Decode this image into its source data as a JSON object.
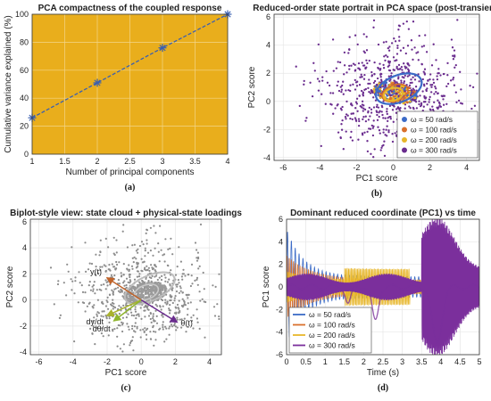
{
  "chart_data": [
    {
      "panel": "(a)",
      "type": "line",
      "title": "PCA compactness of the coupled response",
      "xlabel": "Number of principal components",
      "ylabel": "Cumulative variance explained (%)",
      "xlim": [
        1,
        4
      ],
      "ylim": [
        0,
        100
      ],
      "xticks": [
        "1",
        "1.5",
        "2",
        "2.5",
        "3",
        "3.5",
        "4"
      ],
      "yticks": [
        "0",
        "20",
        "40",
        "60",
        "80",
        "100"
      ],
      "background": "#E9AE1C",
      "grid": true,
      "x": [
        1,
        2,
        3,
        4
      ],
      "y": [
        26,
        51,
        76,
        100
      ],
      "line_color": "#3A5FB0",
      "marker": "asterisk"
    },
    {
      "panel": "(b)",
      "type": "scatter",
      "title": "Reduced-order state portrait in PCA space (post-transient)",
      "xlabel": "PC1 score",
      "ylabel": "PC2 score",
      "xlim": [
        -6.5,
        4.7
      ],
      "ylim": [
        -4.2,
        6.2
      ],
      "xticks": [
        "-6",
        "-4",
        "-2",
        "0",
        "2",
        "4"
      ],
      "yticks": [
        "-4",
        "-2",
        "0",
        "2",
        "4",
        "6"
      ],
      "grid": true,
      "legend_position": "bottom-right",
      "series": [
        {
          "name": "ω = 50 rad/s",
          "color": "#3B6BC7"
        },
        {
          "name": "ω = 100 rad/s",
          "color": "#D9702C"
        },
        {
          "name": "ω = 200 rad/s",
          "color": "#E7B62A"
        },
        {
          "name": "ω = 300 rad/s",
          "color": "#6A2C8E"
        }
      ]
    },
    {
      "panel": "(c)",
      "type": "scatter",
      "title": "Biplot-style view: state cloud + physical-state loadings",
      "xlabel": "PC1 score",
      "ylabel": "PC2 score",
      "xlim": [
        -6.5,
        4.7
      ],
      "ylim": [
        -4.2,
        6.2
      ],
      "xticks": [
        "-6",
        "-4",
        "-2",
        "0",
        "2",
        "4"
      ],
      "yticks": [
        "-4",
        "-2",
        "0",
        "2",
        "4",
        "6"
      ],
      "grid": true,
      "loadings": [
        {
          "label": "y(t)",
          "x": -2.0,
          "y": 1.7,
          "color": "#C0632A"
        },
        {
          "label": "dy/dt",
          "x": -2.0,
          "y": -1.2,
          "color": "#A9B22E"
        },
        {
          "label": "dθ/dt",
          "x": -1.6,
          "y": -1.6,
          "color": "#8FB52E"
        },
        {
          "label": "θ(t)",
          "x": 2.1,
          "y": -1.7,
          "color": "#6A2C8E"
        }
      ]
    },
    {
      "panel": "(d)",
      "type": "line",
      "title": "Dominant reduced coordinate (PC1) vs time",
      "xlabel": "Time (s)",
      "ylabel": "PC1 score",
      "xlim": [
        0,
        5
      ],
      "ylim": [
        -6,
        6
      ],
      "xticks": [
        "0",
        "0.5",
        "1",
        "1.5",
        "2",
        "2.5",
        "3",
        "3.5",
        "4",
        "4.5",
        "5"
      ],
      "yticks": [
        "-6",
        "-4",
        "-2",
        "0",
        "2",
        "4",
        "6"
      ],
      "grid": true,
      "legend_position": "bottom-left",
      "series": [
        {
          "name": "ω = 50 rad/s",
          "color": "#3B6BC7"
        },
        {
          "name": "ω = 100 rad/s",
          "color": "#D9702C"
        },
        {
          "name": "ω = 200 rad/s",
          "color": "#E7B62A"
        },
        {
          "name": "ω = 300 rad/s",
          "color": "#7B2F9C"
        }
      ]
    }
  ]
}
